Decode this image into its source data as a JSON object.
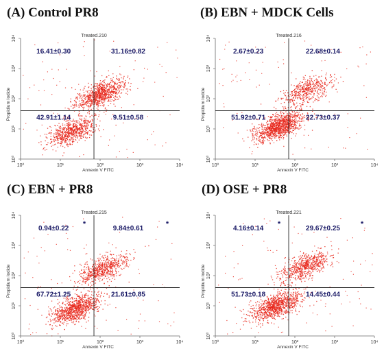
{
  "colors": {
    "dots": "#e8281c",
    "quadrant_line": "#222222",
    "stats_text": "#1a1a66",
    "asterisk": "#1a1a66"
  },
  "chart_data": [
    {
      "type": "scatter",
      "panel_label": "(A) Control PR8",
      "title": "Treated.210",
      "xlabel": "Annexin V FITC",
      "ylabel": "Propidium Iodide",
      "xscale": "log",
      "yscale": "log",
      "xlim": [
        1,
        10000
      ],
      "ylim": [
        1,
        10000
      ],
      "xticks": [
        "10⁰",
        "10¹",
        "10²",
        "10³",
        "10⁴"
      ],
      "yticks": [
        "10⁰",
        "10¹",
        "10²",
        "10³",
        "10⁴"
      ],
      "gate": {
        "x": 70,
        "y": 40
      },
      "quadrants": {
        "upper_left": "16.41±0.30",
        "upper_right": "31.16±0.82",
        "lower_left": "42.91±1.14",
        "lower_right": "9.51±0.58"
      },
      "asterisks": {
        "upper_left": false,
        "upper_right": false
      },
      "clusters": [
        {
          "x": 20,
          "y": 8,
          "weight": 0.45
        },
        {
          "x": 100,
          "y": 140,
          "weight": 0.55
        }
      ]
    },
    {
      "type": "scatter",
      "panel_label": "(B) EBN + MDCK Cells",
      "title": "Treated.216",
      "xlabel": "Annexin V FITC",
      "ylabel": "Propidium Iodide",
      "xscale": "log",
      "yscale": "log",
      "xlim": [
        1,
        10000
      ],
      "ylim": [
        1,
        10000
      ],
      "xticks": [
        "10⁰",
        "10¹",
        "10²",
        "10³",
        "10⁴"
      ],
      "yticks": [
        "10⁰",
        "10¹",
        "10²",
        "10³",
        "10⁴"
      ],
      "gate": {
        "x": 70,
        "y": 40
      },
      "quadrants": {
        "upper_left": "2.67±0.23",
        "upper_right": "22.68±0.14",
        "lower_left": "51.92±0.71",
        "lower_right": "22.73±0.37"
      },
      "asterisks": {
        "upper_left": false,
        "upper_right": false
      },
      "clusters": [
        {
          "x": 40,
          "y": 12,
          "weight": 0.7
        },
        {
          "x": 200,
          "y": 180,
          "weight": 0.3
        }
      ]
    },
    {
      "type": "scatter",
      "panel_label": "(C) EBN + PR8",
      "title": "Treated.215",
      "xlabel": "Annexin V FITC",
      "ylabel": "Propidium Iodide",
      "xscale": "log",
      "yscale": "log",
      "xlim": [
        1,
        10000
      ],
      "ylim": [
        1,
        10000
      ],
      "xticks": [
        "10⁰",
        "10¹",
        "10²",
        "10³",
        "10⁴"
      ],
      "yticks": [
        "10⁰",
        "10¹",
        "10²",
        "10³",
        "10⁴"
      ],
      "gate": {
        "x": 70,
        "y": 40
      },
      "quadrants": {
        "upper_left": "0.94±0.22",
        "upper_right": "9.84±0.61",
        "lower_left": "67.72±1.25",
        "lower_right": "21.61±0.85"
      },
      "asterisks": {
        "upper_left": true,
        "upper_right": true
      },
      "clusters": [
        {
          "x": 25,
          "y": 8,
          "weight": 0.6
        },
        {
          "x": 110,
          "y": 160,
          "weight": 0.4
        }
      ]
    },
    {
      "type": "scatter",
      "panel_label": "(D) OSE + PR8",
      "title": "Treated.221",
      "xlabel": "Annexin V FITC",
      "ylabel": "Propidium Iodide",
      "xscale": "log",
      "yscale": "log",
      "xlim": [
        1,
        10000
      ],
      "ylim": [
        1,
        10000
      ],
      "xticks": [
        "10⁰",
        "10¹",
        "10²",
        "10³",
        "10⁴"
      ],
      "yticks": [
        "10⁰",
        "10¹",
        "10²",
        "10³",
        "10⁴"
      ],
      "gate": {
        "x": 70,
        "y": 40
      },
      "quadrants": {
        "upper_left": "4.16±0.14",
        "upper_right": "29.67±0.25",
        "lower_left": "51.73±0.18",
        "lower_right": "14.45±0.44"
      },
      "asterisks": {
        "upper_left": true,
        "upper_right": true
      },
      "clusters": [
        {
          "x": 35,
          "y": 10,
          "weight": 0.6
        },
        {
          "x": 180,
          "y": 200,
          "weight": 0.4
        }
      ]
    }
  ]
}
